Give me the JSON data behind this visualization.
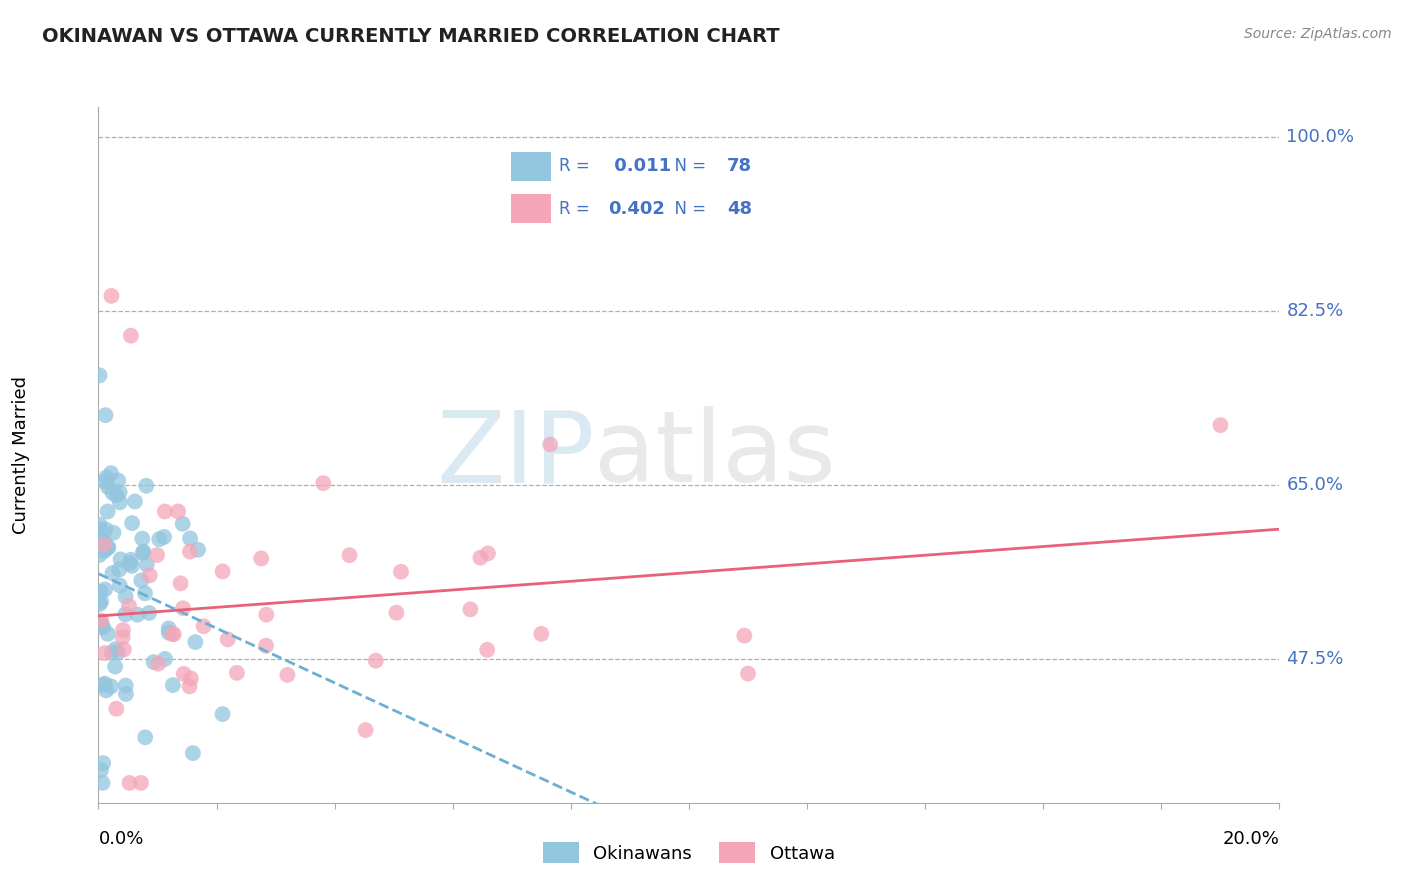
{
  "title": "OKINAWAN VS OTTAWA CURRENTLY MARRIED CORRELATION CHART",
  "source": "Source: ZipAtlas.com",
  "ylabel": "Currently Married",
  "xlim": [
    0.0,
    20.0
  ],
  "ylim": [
    33.0,
    103.0
  ],
  "ytick_vals": [
    47.5,
    65.0,
    82.5,
    100.0
  ],
  "ytick_labels": [
    "47.5%",
    "65.0%",
    "82.5%",
    "100.0%"
  ],
  "okinawan_R": "0.011",
  "okinawan_N": "78",
  "ottawa_R": "0.402",
  "ottawa_N": "48",
  "okinawan_color": "#92c5de",
  "ottawa_color": "#f4a6b8",
  "okinawan_line_color": "#6baed6",
  "ottawa_line_color": "#e8607a",
  "background_color": "#ffffff",
  "grid_color": "#b0b0b0",
  "legend_label_1": "Okinawans",
  "legend_label_2": "Ottawa",
  "title_color": "#222222",
  "source_color": "#888888",
  "right_axis_color": "#4472c4",
  "legend_text_color": "#4472c4",
  "title_fontsize": 14,
  "axis_fontsize": 13,
  "watermark_zip_color": "#b8d4e8",
  "watermark_atlas_color": "#c8c8c8"
}
